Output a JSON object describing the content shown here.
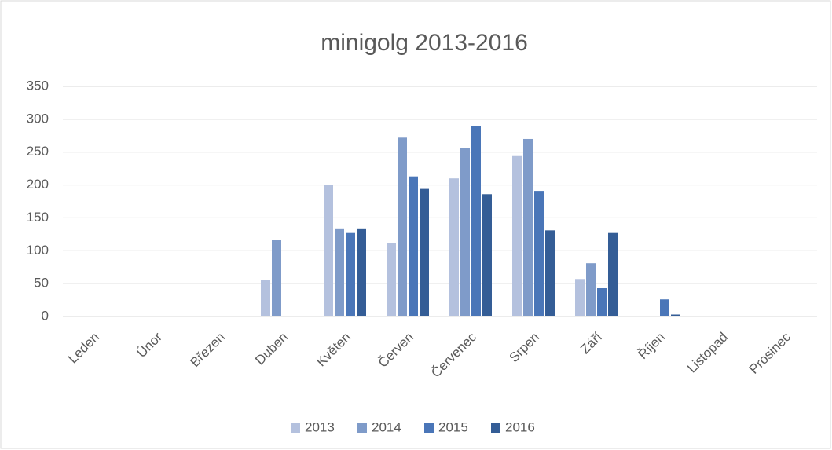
{
  "chart_data": {
    "type": "bar",
    "title": "minigolg 2013-2016",
    "categories": [
      "Leden",
      "Únor",
      "Březen",
      "Duben",
      "Květen",
      "Červen",
      "Červenec",
      "Srpen",
      "Září",
      "Říjen",
      "Listopad",
      "Prosinec"
    ],
    "series": [
      {
        "name": "2013",
        "color": "#b4c1de",
        "values": [
          0,
          0,
          0,
          55,
          200,
          112,
          210,
          244,
          57,
          0,
          0,
          0
        ]
      },
      {
        "name": "2014",
        "color": "#7f9bc9",
        "values": [
          0,
          0,
          0,
          117,
          134,
          272,
          256,
          270,
          81,
          0,
          0,
          0
        ]
      },
      {
        "name": "2015",
        "color": "#4a76b8",
        "values": [
          0,
          0,
          0,
          0,
          127,
          213,
          290,
          191,
          43,
          26,
          0,
          0
        ]
      },
      {
        "name": "2016",
        "color": "#345d96",
        "values": [
          0,
          0,
          0,
          0,
          134,
          194,
          186,
          131,
          127,
          3,
          0,
          0
        ]
      }
    ],
    "ylim": [
      0,
      350
    ],
    "yticks": [
      0,
      50,
      100,
      150,
      200,
      250,
      300,
      350
    ],
    "grid": true,
    "legend": "bottom"
  }
}
